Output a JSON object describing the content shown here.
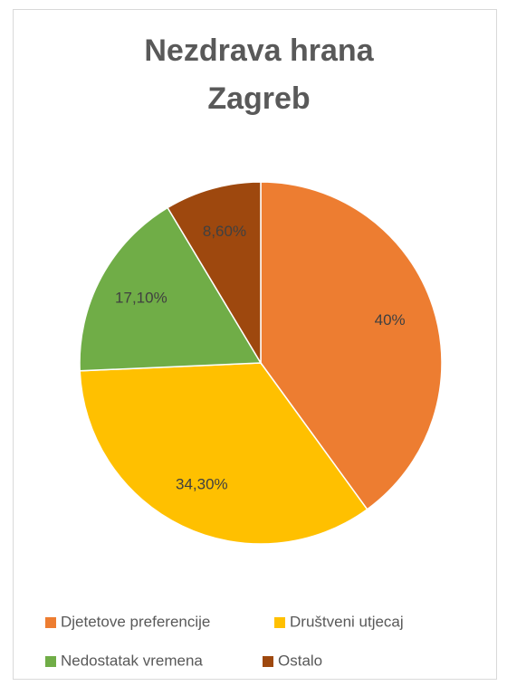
{
  "chart_data": {
    "type": "pie",
    "title": [
      "Nezdrava hrana",
      "Zagreb"
    ],
    "categories": [
      "Djetetove preferencije",
      "Društveni utjecaj",
      "Nedostatak vremena",
      "Ostalo"
    ],
    "values": [
      40,
      34.3,
      17.1,
      8.6
    ],
    "value_labels": [
      "40%",
      "34,30%",
      "17,10%",
      "8,60%"
    ],
    "colors": [
      "#ED7D31",
      "#FFC000",
      "#70AD47",
      "#9E480E"
    ],
    "legend": "bottom"
  }
}
